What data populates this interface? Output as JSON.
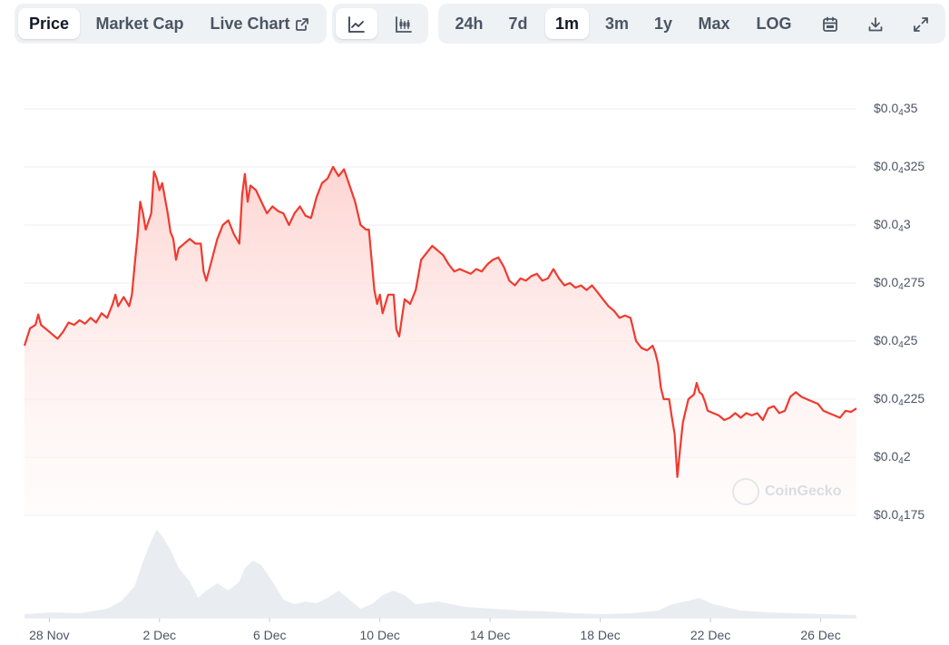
{
  "toolbar": {
    "view_tabs": [
      {
        "label": "Price",
        "active": true
      },
      {
        "label": "Market Cap",
        "active": false
      },
      {
        "label": "Live Chart",
        "active": false,
        "icon": "external-link-icon"
      }
    ],
    "chart_types": [
      {
        "icon": "line-chart-icon",
        "active": true
      },
      {
        "icon": "candlestick-chart-icon",
        "active": false
      }
    ],
    "ranges": [
      {
        "label": "24h",
        "active": false
      },
      {
        "label": "7d",
        "active": false
      },
      {
        "label": "1m",
        "active": true
      },
      {
        "label": "3m",
        "active": false
      },
      {
        "label": "1y",
        "active": false
      },
      {
        "label": "Max",
        "active": false
      },
      {
        "label": "LOG",
        "active": false
      }
    ],
    "tools": [
      {
        "icon": "calendar-icon"
      },
      {
        "icon": "download-icon"
      },
      {
        "icon": "expand-icon"
      }
    ]
  },
  "watermark": "CoinGecko",
  "colors": {
    "line": "#f03a2f",
    "fill_top": "#fdd5d2",
    "volume": "#e9edf1",
    "grid": "#eceef1"
  },
  "chart_data": {
    "type": "area",
    "title": "",
    "xlabel": "",
    "ylabel": "",
    "ylim": [
      4.175e-05,
      4.35e-05
    ],
    "yticks": [
      {
        "base": "$0.0",
        "sub": "4",
        "tail": "35",
        "value": 4.35e-05
      },
      {
        "base": "$0.0",
        "sub": "4",
        "tail": "325",
        "value": 4.325e-05
      },
      {
        "base": "$0.0",
        "sub": "4",
        "tail": "3",
        "value": 4.3e-05
      },
      {
        "base": "$0.0",
        "sub": "4",
        "tail": "275",
        "value": 4.275e-05
      },
      {
        "base": "$0.0",
        "sub": "4",
        "tail": "25",
        "value": 4.25e-05
      },
      {
        "base": "$0.0",
        "sub": "4",
        "tail": "225",
        "value": 4.225e-05
      },
      {
        "base": "$0.0",
        "sub": "4",
        "tail": "2",
        "value": 4.2e-05
      },
      {
        "base": "$0.0",
        "sub": "4",
        "tail": "175",
        "value": 4.175e-05
      }
    ],
    "xrange_days": [
      0,
      30.2
    ],
    "xticks": [
      {
        "label": "28 Nov",
        "day": 0.9
      },
      {
        "label": "2 Dec",
        "day": 4.9
      },
      {
        "label": "6 Dec",
        "day": 8.9
      },
      {
        "label": "10 Dec",
        "day": 12.9
      },
      {
        "label": "14 Dec",
        "day": 16.9
      },
      {
        "label": "18 Dec",
        "day": 20.9
      },
      {
        "label": "22 Dec",
        "day": 24.9
      },
      {
        "label": "26 Dec",
        "day": 28.9
      }
    ],
    "series": [
      {
        "values": [
          [
            0.0,
            4.248
          ],
          [
            0.2,
            4.2555
          ],
          [
            0.4,
            4.257
          ],
          [
            0.5,
            4.2615
          ],
          [
            0.6,
            4.257
          ],
          [
            0.8,
            4.255
          ],
          [
            1.0,
            4.253
          ],
          [
            1.2,
            4.251
          ],
          [
            1.4,
            4.254
          ],
          [
            1.6,
            4.258
          ],
          [
            1.8,
            4.257
          ],
          [
            2.0,
            4.259
          ],
          [
            2.2,
            4.2575
          ],
          [
            2.4,
            4.26
          ],
          [
            2.6,
            4.258
          ],
          [
            2.8,
            4.262
          ],
          [
            3.0,
            4.26
          ],
          [
            3.2,
            4.266
          ],
          [
            3.3,
            4.27
          ],
          [
            3.4,
            4.265
          ],
          [
            3.6,
            4.269
          ],
          [
            3.8,
            4.265
          ],
          [
            3.9,
            4.27
          ],
          [
            4.0,
            4.283
          ],
          [
            4.1,
            4.295
          ],
          [
            4.2,
            4.31
          ],
          [
            4.3,
            4.305
          ],
          [
            4.4,
            4.298
          ],
          [
            4.6,
            4.305
          ],
          [
            4.7,
            4.323
          ],
          [
            4.8,
            4.32
          ],
          [
            4.9,
            4.315
          ],
          [
            5.0,
            4.318
          ],
          [
            5.2,
            4.305
          ],
          [
            5.3,
            4.297
          ],
          [
            5.4,
            4.294
          ],
          [
            5.5,
            4.285
          ],
          [
            5.6,
            4.29
          ],
          [
            5.8,
            4.292
          ],
          [
            6.0,
            4.294
          ],
          [
            6.2,
            4.292
          ],
          [
            6.4,
            4.292
          ],
          [
            6.5,
            4.28
          ],
          [
            6.6,
            4.276
          ],
          [
            6.8,
            4.285
          ],
          [
            7.0,
            4.294
          ],
          [
            7.2,
            4.3
          ],
          [
            7.4,
            4.302
          ],
          [
            7.6,
            4.296
          ],
          [
            7.8,
            4.292
          ],
          [
            7.9,
            4.313
          ],
          [
            8.0,
            4.322
          ],
          [
            8.1,
            4.31
          ],
          [
            8.2,
            4.317
          ],
          [
            8.4,
            4.315
          ],
          [
            8.6,
            4.31
          ],
          [
            8.8,
            4.305
          ],
          [
            9.0,
            4.308
          ],
          [
            9.2,
            4.306
          ],
          [
            9.4,
            4.305
          ],
          [
            9.6,
            4.3
          ],
          [
            9.8,
            4.305
          ],
          [
            10.0,
            4.308
          ],
          [
            10.2,
            4.304
          ],
          [
            10.4,
            4.303
          ],
          [
            10.6,
            4.312
          ],
          [
            10.8,
            4.318
          ],
          [
            11.0,
            4.32
          ],
          [
            11.2,
            4.325
          ],
          [
            11.4,
            4.321
          ],
          [
            11.6,
            4.324
          ],
          [
            11.8,
            4.317
          ],
          [
            12.0,
            4.31
          ],
          [
            12.2,
            4.3
          ],
          [
            12.4,
            4.298
          ],
          [
            12.5,
            4.298
          ],
          [
            12.6,
            4.285
          ],
          [
            12.7,
            4.272
          ],
          [
            12.8,
            4.266
          ],
          [
            12.9,
            4.27
          ],
          [
            13.0,
            4.262
          ],
          [
            13.2,
            4.27
          ],
          [
            13.4,
            4.27
          ],
          [
            13.5,
            4.255
          ],
          [
            13.6,
            4.252
          ],
          [
            13.7,
            4.26
          ],
          [
            13.8,
            4.268
          ],
          [
            14.0,
            4.266
          ],
          [
            14.2,
            4.272
          ],
          [
            14.4,
            4.285
          ],
          [
            14.6,
            4.288
          ],
          [
            14.8,
            4.291
          ],
          [
            15.0,
            4.289
          ],
          [
            15.2,
            4.287
          ],
          [
            15.4,
            4.283
          ],
          [
            15.6,
            4.28
          ],
          [
            15.8,
            4.281
          ],
          [
            16.0,
            4.28
          ],
          [
            16.2,
            4.279
          ],
          [
            16.4,
            4.281
          ],
          [
            16.6,
            4.28
          ],
          [
            16.8,
            4.283
          ],
          [
            17.0,
            4.285
          ],
          [
            17.2,
            4.286
          ],
          [
            17.4,
            4.282
          ],
          [
            17.6,
            4.276
          ],
          [
            17.8,
            4.274
          ],
          [
            18.0,
            4.277
          ],
          [
            18.2,
            4.276
          ],
          [
            18.4,
            4.278
          ],
          [
            18.6,
            4.279
          ],
          [
            18.8,
            4.276
          ],
          [
            19.0,
            4.277
          ],
          [
            19.2,
            4.281
          ],
          [
            19.4,
            4.277
          ],
          [
            19.6,
            4.274
          ],
          [
            19.8,
            4.275
          ],
          [
            20.0,
            4.273
          ],
          [
            20.2,
            4.274
          ],
          [
            20.4,
            4.272
          ],
          [
            20.6,
            4.274
          ],
          [
            20.8,
            4.271
          ],
          [
            21.0,
            4.268
          ],
          [
            21.2,
            4.265
          ],
          [
            21.4,
            4.263
          ],
          [
            21.6,
            4.26
          ],
          [
            21.8,
            4.261
          ],
          [
            22.0,
            4.26
          ],
          [
            22.2,
            4.25
          ],
          [
            22.4,
            4.247
          ],
          [
            22.6,
            4.246
          ],
          [
            22.8,
            4.248
          ],
          [
            22.9,
            4.245
          ],
          [
            23.0,
            4.24
          ],
          [
            23.1,
            4.23
          ],
          [
            23.2,
            4.225
          ],
          [
            23.4,
            4.225
          ],
          [
            23.5,
            4.217
          ],
          [
            23.6,
            4.21
          ],
          [
            23.7,
            4.1915
          ],
          [
            23.8,
            4.204
          ],
          [
            23.9,
            4.215
          ],
          [
            24.0,
            4.22
          ],
          [
            24.1,
            4.225
          ],
          [
            24.3,
            4.227
          ],
          [
            24.4,
            4.232
          ],
          [
            24.5,
            4.228
          ],
          [
            24.6,
            4.227
          ],
          [
            24.7,
            4.224
          ],
          [
            24.8,
            4.22
          ],
          [
            25.0,
            4.219
          ],
          [
            25.2,
            4.218
          ],
          [
            25.4,
            4.216
          ],
          [
            25.6,
            4.217
          ],
          [
            25.8,
            4.219
          ],
          [
            26.0,
            4.217
          ],
          [
            26.2,
            4.219
          ],
          [
            26.4,
            4.218
          ],
          [
            26.6,
            4.219
          ],
          [
            26.8,
            4.216
          ],
          [
            27.0,
            4.221
          ],
          [
            27.2,
            4.222
          ],
          [
            27.4,
            4.219
          ],
          [
            27.6,
            4.22
          ],
          [
            27.8,
            4.226
          ],
          [
            28.0,
            4.228
          ],
          [
            28.2,
            4.226
          ],
          [
            28.4,
            4.225
          ],
          [
            28.6,
            4.224
          ],
          [
            28.8,
            4.223
          ],
          [
            29.0,
            4.22
          ],
          [
            29.2,
            4.219
          ],
          [
            29.4,
            4.218
          ],
          [
            29.6,
            4.217
          ],
          [
            29.8,
            4.22
          ],
          [
            30.0,
            4.2195
          ],
          [
            30.2,
            4.221
          ]
        ]
      }
    ],
    "value_scale_note": "price values in units of 1e-5 USD",
    "volume": [
      [
        0.0,
        0.04
      ],
      [
        1.0,
        0.06
      ],
      [
        2.0,
        0.05
      ],
      [
        3.0,
        0.1
      ],
      [
        3.5,
        0.18
      ],
      [
        4.0,
        0.35
      ],
      [
        4.3,
        0.62
      ],
      [
        4.6,
        0.85
      ],
      [
        4.8,
        0.97
      ],
      [
        5.0,
        0.9
      ],
      [
        5.3,
        0.75
      ],
      [
        5.6,
        0.55
      ],
      [
        6.0,
        0.4
      ],
      [
        6.3,
        0.22
      ],
      [
        6.6,
        0.3
      ],
      [
        7.0,
        0.38
      ],
      [
        7.4,
        0.3
      ],
      [
        7.8,
        0.4
      ],
      [
        8.0,
        0.55
      ],
      [
        8.3,
        0.63
      ],
      [
        8.6,
        0.58
      ],
      [
        9.0,
        0.4
      ],
      [
        9.4,
        0.2
      ],
      [
        9.8,
        0.15
      ],
      [
        10.2,
        0.18
      ],
      [
        10.6,
        0.16
      ],
      [
        11.0,
        0.22
      ],
      [
        11.4,
        0.3
      ],
      [
        11.8,
        0.2
      ],
      [
        12.2,
        0.1
      ],
      [
        12.6,
        0.15
      ],
      [
        13.0,
        0.25
      ],
      [
        13.4,
        0.3
      ],
      [
        13.8,
        0.25
      ],
      [
        14.2,
        0.15
      ],
      [
        15.0,
        0.18
      ],
      [
        16.0,
        0.12
      ],
      [
        17.0,
        0.1
      ],
      [
        18.0,
        0.08
      ],
      [
        19.0,
        0.07
      ],
      [
        20.0,
        0.05
      ],
      [
        21.0,
        0.04
      ],
      [
        22.0,
        0.05
      ],
      [
        23.0,
        0.08
      ],
      [
        23.5,
        0.15
      ],
      [
        24.0,
        0.18
      ],
      [
        24.5,
        0.22
      ],
      [
        25.0,
        0.15
      ],
      [
        26.0,
        0.08
      ],
      [
        27.0,
        0.06
      ],
      [
        28.0,
        0.05
      ],
      [
        29.0,
        0.04
      ],
      [
        30.2,
        0.03
      ]
    ]
  }
}
